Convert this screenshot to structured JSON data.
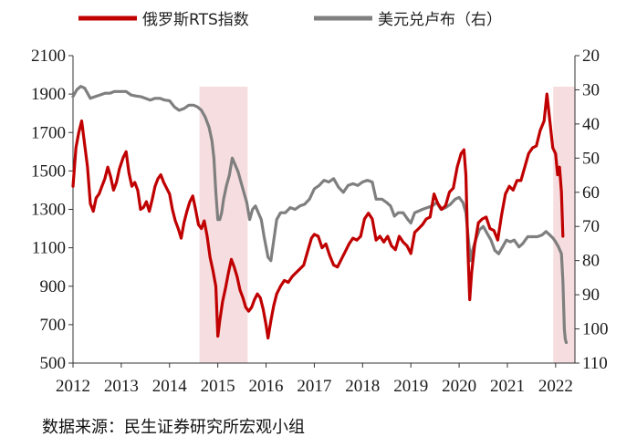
{
  "chart_data": {
    "type": "line",
    "legend": {
      "position": "top",
      "entries": [
        "俄罗斯RTS指数",
        "美元兑卢布（右）"
      ]
    },
    "x": {
      "range": [
        2012.0,
        2022.4
      ],
      "tick_labels": [
        "2012",
        "2013",
        "2014",
        "2015",
        "2016",
        "2017",
        "2018",
        "2019",
        "2020",
        "2021",
        "2022"
      ]
    },
    "y_left": {
      "range": [
        500,
        2100
      ],
      "ticks": [
        500,
        700,
        900,
        1100,
        1300,
        1500,
        1700,
        1900,
        2100
      ]
    },
    "y_right": {
      "range": [
        20,
        110
      ],
      "inverted": true,
      "ticks": [
        20,
        30,
        40,
        50,
        60,
        70,
        80,
        90,
        100,
        110
      ]
    },
    "shaded_periods": [
      [
        2014.62,
        2015.62
      ],
      [
        2021.95,
        2022.4
      ]
    ],
    "grid": false,
    "series": [
      {
        "name": "俄罗斯RTS指数",
        "axis": "left",
        "color": "#c00000",
        "points": [
          [
            2012.0,
            1420
          ],
          [
            2012.06,
            1620
          ],
          [
            2012.12,
            1700
          ],
          [
            2012.18,
            1760
          ],
          [
            2012.24,
            1640
          ],
          [
            2012.3,
            1520
          ],
          [
            2012.36,
            1330
          ],
          [
            2012.42,
            1290
          ],
          [
            2012.48,
            1360
          ],
          [
            2012.54,
            1380
          ],
          [
            2012.6,
            1420
          ],
          [
            2012.66,
            1460
          ],
          [
            2012.72,
            1520
          ],
          [
            2012.78,
            1470
          ],
          [
            2012.84,
            1400
          ],
          [
            2012.9,
            1440
          ],
          [
            2012.96,
            1510
          ],
          [
            2013.04,
            1570
          ],
          [
            2013.1,
            1600
          ],
          [
            2013.16,
            1490
          ],
          [
            2013.22,
            1420
          ],
          [
            2013.28,
            1440
          ],
          [
            2013.34,
            1400
          ],
          [
            2013.4,
            1300
          ],
          [
            2013.46,
            1310
          ],
          [
            2013.52,
            1340
          ],
          [
            2013.58,
            1290
          ],
          [
            2013.64,
            1350
          ],
          [
            2013.7,
            1420
          ],
          [
            2013.76,
            1460
          ],
          [
            2013.82,
            1480
          ],
          [
            2013.88,
            1440
          ],
          [
            2013.94,
            1410
          ],
          [
            2014.0,
            1380
          ],
          [
            2014.06,
            1300
          ],
          [
            2014.12,
            1240
          ],
          [
            2014.18,
            1200
          ],
          [
            2014.24,
            1150
          ],
          [
            2014.3,
            1230
          ],
          [
            2014.36,
            1290
          ],
          [
            2014.42,
            1340
          ],
          [
            2014.48,
            1370
          ],
          [
            2014.54,
            1300
          ],
          [
            2014.6,
            1220
          ],
          [
            2014.66,
            1200
          ],
          [
            2014.72,
            1240
          ],
          [
            2014.78,
            1160
          ],
          [
            2014.84,
            1050
          ],
          [
            2014.9,
            980
          ],
          [
            2014.96,
            900
          ],
          [
            2015.0,
            640
          ],
          [
            2015.04,
            720
          ],
          [
            2015.1,
            820
          ],
          [
            2015.16,
            890
          ],
          [
            2015.22,
            970
          ],
          [
            2015.28,
            1040
          ],
          [
            2015.34,
            1000
          ],
          [
            2015.4,
            950
          ],
          [
            2015.46,
            880
          ],
          [
            2015.52,
            840
          ],
          [
            2015.58,
            790
          ],
          [
            2015.64,
            770
          ],
          [
            2015.7,
            790
          ],
          [
            2015.76,
            830
          ],
          [
            2015.82,
            860
          ],
          [
            2015.88,
            840
          ],
          [
            2015.94,
            780
          ],
          [
            2016.0,
            700
          ],
          [
            2016.04,
            630
          ],
          [
            2016.1,
            720
          ],
          [
            2016.16,
            800
          ],
          [
            2016.22,
            860
          ],
          [
            2016.3,
            900
          ],
          [
            2016.38,
            930
          ],
          [
            2016.46,
            920
          ],
          [
            2016.54,
            950
          ],
          [
            2016.62,
            970
          ],
          [
            2016.7,
            990
          ],
          [
            2016.78,
            1010
          ],
          [
            2016.86,
            1080
          ],
          [
            2016.94,
            1150
          ],
          [
            2017.0,
            1170
          ],
          [
            2017.08,
            1160
          ],
          [
            2017.16,
            1100
          ],
          [
            2017.24,
            1120
          ],
          [
            2017.32,
            1060
          ],
          [
            2017.4,
            1010
          ],
          [
            2017.48,
            1000
          ],
          [
            2017.56,
            1040
          ],
          [
            2017.64,
            1080
          ],
          [
            2017.72,
            1120
          ],
          [
            2017.8,
            1150
          ],
          [
            2017.88,
            1140
          ],
          [
            2017.96,
            1160
          ],
          [
            2018.04,
            1250
          ],
          [
            2018.12,
            1280
          ],
          [
            2018.2,
            1250
          ],
          [
            2018.28,
            1140
          ],
          [
            2018.36,
            1160
          ],
          [
            2018.44,
            1130
          ],
          [
            2018.52,
            1160
          ],
          [
            2018.6,
            1110
          ],
          [
            2018.68,
            1090
          ],
          [
            2018.76,
            1160
          ],
          [
            2018.84,
            1130
          ],
          [
            2018.92,
            1110
          ],
          [
            2019.0,
            1070
          ],
          [
            2019.08,
            1180
          ],
          [
            2019.16,
            1200
          ],
          [
            2019.24,
            1220
          ],
          [
            2019.32,
            1250
          ],
          [
            2019.4,
            1260
          ],
          [
            2019.48,
            1380
          ],
          [
            2019.56,
            1330
          ],
          [
            2019.64,
            1300
          ],
          [
            2019.72,
            1320
          ],
          [
            2019.8,
            1390
          ],
          [
            2019.88,
            1410
          ],
          [
            2019.96,
            1520
          ],
          [
            2020.04,
            1590
          ],
          [
            2020.1,
            1610
          ],
          [
            2020.14,
            1480
          ],
          [
            2020.18,
            1100
          ],
          [
            2020.22,
            830
          ],
          [
            2020.26,
            970
          ],
          [
            2020.32,
            1110
          ],
          [
            2020.4,
            1230
          ],
          [
            2020.48,
            1250
          ],
          [
            2020.56,
            1260
          ],
          [
            2020.64,
            1200
          ],
          [
            2020.72,
            1190
          ],
          [
            2020.8,
            1140
          ],
          [
            2020.88,
            1270
          ],
          [
            2020.96,
            1380
          ],
          [
            2021.04,
            1420
          ],
          [
            2021.12,
            1400
          ],
          [
            2021.2,
            1450
          ],
          [
            2021.28,
            1450
          ],
          [
            2021.36,
            1520
          ],
          [
            2021.44,
            1590
          ],
          [
            2021.52,
            1620
          ],
          [
            2021.6,
            1630
          ],
          [
            2021.68,
            1710
          ],
          [
            2021.76,
            1760
          ],
          [
            2021.82,
            1900
          ],
          [
            2021.88,
            1760
          ],
          [
            2021.94,
            1620
          ],
          [
            2022.0,
            1590
          ],
          [
            2022.04,
            1480
          ],
          [
            2022.08,
            1520
          ],
          [
            2022.12,
            1390
          ],
          [
            2022.15,
            1160
          ]
        ]
      },
      {
        "name": "美元兑卢布（右）",
        "axis": "right",
        "color": "#7f7f7f",
        "points": [
          [
            2012.0,
            32
          ],
          [
            2012.08,
            30
          ],
          [
            2012.16,
            29
          ],
          [
            2012.24,
            29.5
          ],
          [
            2012.3,
            31
          ],
          [
            2012.36,
            32.5
          ],
          [
            2012.46,
            32
          ],
          [
            2012.56,
            31.5
          ],
          [
            2012.66,
            31
          ],
          [
            2012.76,
            31
          ],
          [
            2012.86,
            30.5
          ],
          [
            2012.96,
            30.5
          ],
          [
            2013.1,
            30.5
          ],
          [
            2013.2,
            31.5
          ],
          [
            2013.3,
            31.8
          ],
          [
            2013.4,
            32
          ],
          [
            2013.5,
            32.5
          ],
          [
            2013.6,
            33
          ],
          [
            2013.7,
            32.5
          ],
          [
            2013.8,
            32.5
          ],
          [
            2013.9,
            33
          ],
          [
            2014.0,
            33.2
          ],
          [
            2014.1,
            35
          ],
          [
            2014.2,
            36
          ],
          [
            2014.3,
            35.5
          ],
          [
            2014.4,
            34.5
          ],
          [
            2014.5,
            34.5
          ],
          [
            2014.58,
            35
          ],
          [
            2014.66,
            36
          ],
          [
            2014.74,
            38
          ],
          [
            2014.82,
            41
          ],
          [
            2014.88,
            45
          ],
          [
            2014.92,
            50
          ],
          [
            2014.96,
            60
          ],
          [
            2015.0,
            68
          ],
          [
            2015.04,
            68
          ],
          [
            2015.08,
            66
          ],
          [
            2015.12,
            62
          ],
          [
            2015.18,
            58
          ],
          [
            2015.24,
            55
          ],
          [
            2015.3,
            50
          ],
          [
            2015.36,
            52
          ],
          [
            2015.42,
            54
          ],
          [
            2015.48,
            57
          ],
          [
            2015.54,
            60
          ],
          [
            2015.6,
            63
          ],
          [
            2015.66,
            68
          ],
          [
            2015.72,
            65
          ],
          [
            2015.78,
            64
          ],
          [
            2015.84,
            66
          ],
          [
            2015.9,
            68
          ],
          [
            2015.96,
            73
          ],
          [
            2016.04,
            79
          ],
          [
            2016.1,
            80
          ],
          [
            2016.16,
            74
          ],
          [
            2016.22,
            68
          ],
          [
            2016.3,
            66
          ],
          [
            2016.4,
            66
          ],
          [
            2016.5,
            64.5
          ],
          [
            2016.6,
            65
          ],
          [
            2016.7,
            64
          ],
          [
            2016.8,
            63.5
          ],
          [
            2016.9,
            62
          ],
          [
            2017.0,
            59
          ],
          [
            2017.1,
            58
          ],
          [
            2017.2,
            56.5
          ],
          [
            2017.3,
            57
          ],
          [
            2017.4,
            56
          ],
          [
            2017.5,
            58.5
          ],
          [
            2017.6,
            60
          ],
          [
            2017.7,
            58
          ],
          [
            2017.8,
            57.5
          ],
          [
            2017.9,
            58
          ],
          [
            2018.0,
            57
          ],
          [
            2018.1,
            56.5
          ],
          [
            2018.2,
            57
          ],
          [
            2018.28,
            62
          ],
          [
            2018.4,
            62
          ],
          [
            2018.5,
            63
          ],
          [
            2018.58,
            64
          ],
          [
            2018.66,
            67
          ],
          [
            2018.74,
            66
          ],
          [
            2018.84,
            66
          ],
          [
            2018.94,
            68
          ],
          [
            2019.0,
            69
          ],
          [
            2019.08,
            66
          ],
          [
            2019.16,
            65.5
          ],
          [
            2019.24,
            65
          ],
          [
            2019.34,
            64.5
          ],
          [
            2019.44,
            64
          ],
          [
            2019.54,
            63
          ],
          [
            2019.62,
            65
          ],
          [
            2019.72,
            64.5
          ],
          [
            2019.82,
            63.5
          ],
          [
            2019.92,
            62
          ],
          [
            2020.0,
            61.5
          ],
          [
            2020.08,
            63
          ],
          [
            2020.14,
            66
          ],
          [
            2020.2,
            75
          ],
          [
            2020.24,
            80
          ],
          [
            2020.28,
            77
          ],
          [
            2020.34,
            74
          ],
          [
            2020.42,
            71
          ],
          [
            2020.5,
            70
          ],
          [
            2020.58,
            72
          ],
          [
            2020.66,
            74
          ],
          [
            2020.74,
            77
          ],
          [
            2020.82,
            78
          ],
          [
            2020.9,
            76
          ],
          [
            2020.98,
            74
          ],
          [
            2021.06,
            74.5
          ],
          [
            2021.14,
            74
          ],
          [
            2021.24,
            76
          ],
          [
            2021.32,
            75
          ],
          [
            2021.42,
            73
          ],
          [
            2021.52,
            73
          ],
          [
            2021.62,
            73
          ],
          [
            2021.72,
            72.5
          ],
          [
            2021.8,
            71.5
          ],
          [
            2021.88,
            72.5
          ],
          [
            2021.95,
            73.5
          ],
          [
            2022.0,
            74.5
          ],
          [
            2022.06,
            76
          ],
          [
            2022.12,
            78
          ],
          [
            2022.15,
            86
          ],
          [
            2022.18,
            100
          ],
          [
            2022.2,
            103
          ],
          [
            2022.22,
            104
          ]
        ]
      }
    ]
  },
  "footer": {
    "source": "数据来源：民生证券研究所宏观小组"
  }
}
